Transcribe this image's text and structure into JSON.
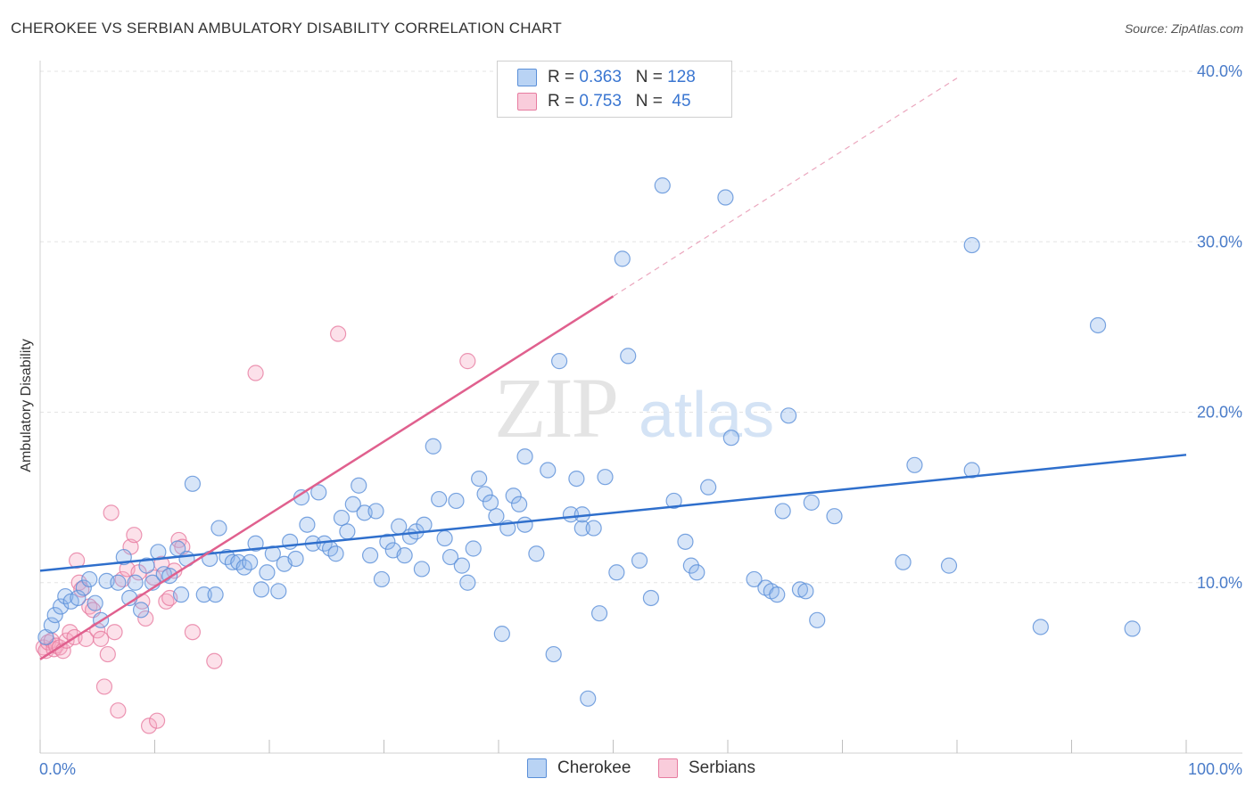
{
  "header": {
    "title": "CHEROKEE VS SERBIAN AMBULATORY DISABILITY CORRELATION CHART",
    "source": "Source: ZipAtlas.com"
  },
  "legend": {
    "rows": [
      {
        "r_label": "R = ",
        "r_value": "0.363",
        "n_label": "N = ",
        "n_value": "128",
        "color": "#a9c8f0",
        "border": "#5a8fd8"
      },
      {
        "r_label": "R = ",
        "r_value": "0.753",
        "n_label": "N = ",
        "n_value": " 45",
        "color": "#f7c3d3",
        "border": "#e77ca0"
      }
    ]
  },
  "watermark": {
    "zip": "ZIP",
    "atlas": "atlas"
  },
  "colors": {
    "cherokee_fill": "rgba(140,180,235,0.35)",
    "cherokee_stroke": "#5a8fd8",
    "cherokee_line": "#2f6fcc",
    "serbian_fill": "rgba(245,170,195,0.35)",
    "serbian_stroke": "#e77ca0",
    "serbian_line": "#e0608e",
    "tick_label": "#4a7cc9"
  },
  "chart_data": {
    "type": "scatter",
    "title": "CHEROKEE VS SERBIAN AMBULATORY DISABILITY CORRELATION CHART",
    "xlabel": "",
    "ylabel": "Ambulatory Disability",
    "xlim": [
      0,
      100
    ],
    "ylim": [
      0,
      40
    ],
    "x_tick_labels": [
      "0.0%",
      "100.0%"
    ],
    "y_ticks": [
      10,
      20,
      30,
      40
    ],
    "y_tick_labels": [
      "10.0%",
      "20.0%",
      "30.0%",
      "40.0%"
    ],
    "grid": true,
    "legend_position": "top-center",
    "series": [
      {
        "name": "Cherokee",
        "R": 0.363,
        "N": 128,
        "trend": {
          "x0": 0,
          "y0": 10.7,
          "x1": 100,
          "y1": 17.5
        },
        "points": [
          [
            0.5,
            6.8
          ],
          [
            1.0,
            7.5
          ],
          [
            1.3,
            8.1
          ],
          [
            1.8,
            8.6
          ],
          [
            2.2,
            9.2
          ],
          [
            2.7,
            8.9
          ],
          [
            3.3,
            9.1
          ],
          [
            3.8,
            9.7
          ],
          [
            4.3,
            10.2
          ],
          [
            4.8,
            8.8
          ],
          [
            5.3,
            7.8
          ],
          [
            5.8,
            10.1
          ],
          [
            6.8,
            10.0
          ],
          [
            7.3,
            11.5
          ],
          [
            7.8,
            9.1
          ],
          [
            8.3,
            10.0
          ],
          [
            8.8,
            8.4
          ],
          [
            9.3,
            11.0
          ],
          [
            9.8,
            10.0
          ],
          [
            10.3,
            11.8
          ],
          [
            10.8,
            10.5
          ],
          [
            11.3,
            10.4
          ],
          [
            12.0,
            12.0
          ],
          [
            12.3,
            9.3
          ],
          [
            12.8,
            11.4
          ],
          [
            13.3,
            15.8
          ],
          [
            14.3,
            9.3
          ],
          [
            14.8,
            11.4
          ],
          [
            15.3,
            9.3
          ],
          [
            15.6,
            13.2
          ],
          [
            16.3,
            11.5
          ],
          [
            16.8,
            11.2
          ],
          [
            17.3,
            11.2
          ],
          [
            17.8,
            10.9
          ],
          [
            18.3,
            11.2
          ],
          [
            18.8,
            12.3
          ],
          [
            19.3,
            9.6
          ],
          [
            19.8,
            10.6
          ],
          [
            20.3,
            11.7
          ],
          [
            20.8,
            9.5
          ],
          [
            21.3,
            11.1
          ],
          [
            21.8,
            12.4
          ],
          [
            22.3,
            11.4
          ],
          [
            22.8,
            15.0
          ],
          [
            23.3,
            13.4
          ],
          [
            23.8,
            12.3
          ],
          [
            24.3,
            15.3
          ],
          [
            24.8,
            12.3
          ],
          [
            25.3,
            12.0
          ],
          [
            25.8,
            11.7
          ],
          [
            26.3,
            13.8
          ],
          [
            26.8,
            13.0
          ],
          [
            27.3,
            14.6
          ],
          [
            27.8,
            15.7
          ],
          [
            28.3,
            14.1
          ],
          [
            28.8,
            11.6
          ],
          [
            29.3,
            14.2
          ],
          [
            29.8,
            10.2
          ],
          [
            30.3,
            12.4
          ],
          [
            30.8,
            11.9
          ],
          [
            31.3,
            13.3
          ],
          [
            31.8,
            11.6
          ],
          [
            32.3,
            12.7
          ],
          [
            32.8,
            13.0
          ],
          [
            33.3,
            10.8
          ],
          [
            33.5,
            13.4
          ],
          [
            34.3,
            18.0
          ],
          [
            34.8,
            14.9
          ],
          [
            35.3,
            12.6
          ],
          [
            35.8,
            11.5
          ],
          [
            36.3,
            14.8
          ],
          [
            36.8,
            11.0
          ],
          [
            37.3,
            10.0
          ],
          [
            37.8,
            12.0
          ],
          [
            38.3,
            16.1
          ],
          [
            38.8,
            15.2
          ],
          [
            39.3,
            14.7
          ],
          [
            39.8,
            13.9
          ],
          [
            40.3,
            7.0
          ],
          [
            40.8,
            13.2
          ],
          [
            41.3,
            15.1
          ],
          [
            41.8,
            14.6
          ],
          [
            42.3,
            17.4
          ],
          [
            43.3,
            11.7
          ],
          [
            44.3,
            16.6
          ],
          [
            44.8,
            5.8
          ],
          [
            45.3,
            23.0
          ],
          [
            46.3,
            14.0
          ],
          [
            46.8,
            16.1
          ],
          [
            47.3,
            13.2
          ],
          [
            47.8,
            3.2
          ],
          [
            48.3,
            13.2
          ],
          [
            48.8,
            8.2
          ],
          [
            49.3,
            16.2
          ],
          [
            50.3,
            10.6
          ],
          [
            51.3,
            23.3
          ],
          [
            52.3,
            11.3
          ],
          [
            53.3,
            9.1
          ],
          [
            54.3,
            33.3
          ],
          [
            55.3,
            14.8
          ],
          [
            56.3,
            12.4
          ],
          [
            56.8,
            11.0
          ],
          [
            57.3,
            10.6
          ],
          [
            58.3,
            15.6
          ],
          [
            59.8,
            32.6
          ],
          [
            60.3,
            18.5
          ],
          [
            62.3,
            10.2
          ],
          [
            63.3,
            9.7
          ],
          [
            63.8,
            9.5
          ],
          [
            64.3,
            9.3
          ],
          [
            64.8,
            14.2
          ],
          [
            65.3,
            19.8
          ],
          [
            66.3,
            9.6
          ],
          [
            66.8,
            9.5
          ],
          [
            67.3,
            14.7
          ],
          [
            67.8,
            7.8
          ],
          [
            69.3,
            13.9
          ],
          [
            75.3,
            11.2
          ],
          [
            76.3,
            16.9
          ],
          [
            79.3,
            11.0
          ],
          [
            81.3,
            16.6
          ],
          [
            81.3,
            29.8
          ],
          [
            87.3,
            7.4
          ],
          [
            92.3,
            25.1
          ],
          [
            95.3,
            7.3
          ],
          [
            50.8,
            29.0
          ],
          [
            47.3,
            14.0
          ],
          [
            42.3,
            13.4
          ]
        ]
      },
      {
        "name": "Serbians",
        "R": 0.753,
        "N": 45,
        "trend": {
          "x0": 0,
          "y0": 5.5,
          "x1": 50,
          "y1": 26.8,
          "dash_x1": 80,
          "dash_y1": 39.6
        },
        "points": [
          [
            0.3,
            6.2
          ],
          [
            0.5,
            6.0
          ],
          [
            0.7,
            6.5
          ],
          [
            1.0,
            6.6
          ],
          [
            1.2,
            6.1
          ],
          [
            1.4,
            6.3
          ],
          [
            1.7,
            6.2
          ],
          [
            2.0,
            6.0
          ],
          [
            2.3,
            6.6
          ],
          [
            2.6,
            7.1
          ],
          [
            3.0,
            6.8
          ],
          [
            3.2,
            11.3
          ],
          [
            3.4,
            10.0
          ],
          [
            3.6,
            9.6
          ],
          [
            4.0,
            6.7
          ],
          [
            4.3,
            8.6
          ],
          [
            4.6,
            8.4
          ],
          [
            5.0,
            7.2
          ],
          [
            5.3,
            6.7
          ],
          [
            5.6,
            3.9
          ],
          [
            5.9,
            5.8
          ],
          [
            6.2,
            14.1
          ],
          [
            6.5,
            7.1
          ],
          [
            6.8,
            2.5
          ],
          [
            7.2,
            10.2
          ],
          [
            7.6,
            10.8
          ],
          [
            7.9,
            12.1
          ],
          [
            8.2,
            12.8
          ],
          [
            8.6,
            10.6
          ],
          [
            8.9,
            8.9
          ],
          [
            9.2,
            7.9
          ],
          [
            9.5,
            1.6
          ],
          [
            9.9,
            10.3
          ],
          [
            10.2,
            1.9
          ],
          [
            10.6,
            11.1
          ],
          [
            11.0,
            8.9
          ],
          [
            11.3,
            9.1
          ],
          [
            11.7,
            10.7
          ],
          [
            12.1,
            12.5
          ],
          [
            12.4,
            12.1
          ],
          [
            13.3,
            7.1
          ],
          [
            15.2,
            5.4
          ],
          [
            18.8,
            22.3
          ],
          [
            26.0,
            24.6
          ],
          [
            37.3,
            23.0
          ]
        ]
      }
    ]
  },
  "bottom_legend": {
    "items": [
      {
        "label": "Cherokee"
      },
      {
        "label": "Serbians"
      }
    ]
  }
}
